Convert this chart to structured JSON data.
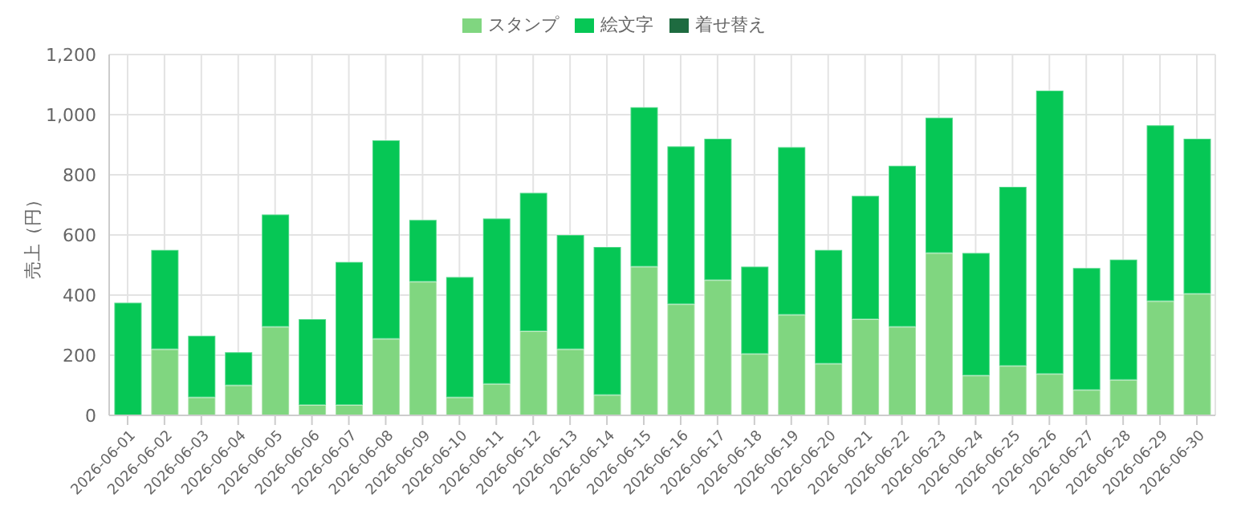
{
  "chart_data": {
    "type": "bar",
    "stacked": true,
    "ylabel": "売上（円）",
    "categories": [
      "2026-06-01",
      "2026-06-02",
      "2026-06-03",
      "2026-06-04",
      "2026-06-05",
      "2026-06-06",
      "2026-06-07",
      "2026-06-08",
      "2026-06-09",
      "2026-06-10",
      "2026-06-11",
      "2026-06-12",
      "2026-06-13",
      "2026-06-14",
      "2026-06-15",
      "2026-06-16",
      "2026-06-17",
      "2026-06-18",
      "2026-06-19",
      "2026-06-20",
      "2026-06-21",
      "2026-06-22",
      "2026-06-23",
      "2026-06-24",
      "2026-06-25",
      "2026-06-26",
      "2026-06-27",
      "2026-06-28",
      "2026-06-29",
      "2026-06-30"
    ],
    "series": [
      {
        "name": "スタンプ",
        "color": "#80d680",
        "values": [
          0,
          220,
          60,
          100,
          295,
          35,
          35,
          255,
          445,
          60,
          105,
          280,
          220,
          68,
          495,
          370,
          450,
          205,
          335,
          172,
          320,
          295,
          540,
          133,
          165,
          138,
          85,
          118,
          380,
          405
        ]
      },
      {
        "name": "絵文字",
        "color": "#06c755",
        "values": [
          375,
          330,
          205,
          110,
          373,
          285,
          475,
          660,
          205,
          400,
          550,
          460,
          380,
          492,
          530,
          525,
          470,
          290,
          557,
          378,
          410,
          535,
          450,
          407,
          595,
          942,
          405,
          400,
          585,
          515
        ]
      },
      {
        "name": "着せ替え",
        "color": "#1e6b40",
        "values": [
          0,
          0,
          0,
          0,
          0,
          0,
          0,
          0,
          0,
          0,
          0,
          0,
          0,
          0,
          0,
          0,
          0,
          0,
          0,
          0,
          0,
          0,
          0,
          0,
          0,
          0,
          0,
          0,
          0,
          0
        ]
      }
    ],
    "ylim": [
      0,
      1200
    ],
    "yticks": [
      {
        "value": 0,
        "label": "0"
      },
      {
        "value": 200,
        "label": "200"
      },
      {
        "value": 400,
        "label": "400"
      },
      {
        "value": 600,
        "label": "600"
      },
      {
        "value": 800,
        "label": "800"
      },
      {
        "value": 1000,
        "label": "1,000"
      },
      {
        "value": 1200,
        "label": "1,200"
      }
    ],
    "grid": true,
    "legend": "top"
  }
}
